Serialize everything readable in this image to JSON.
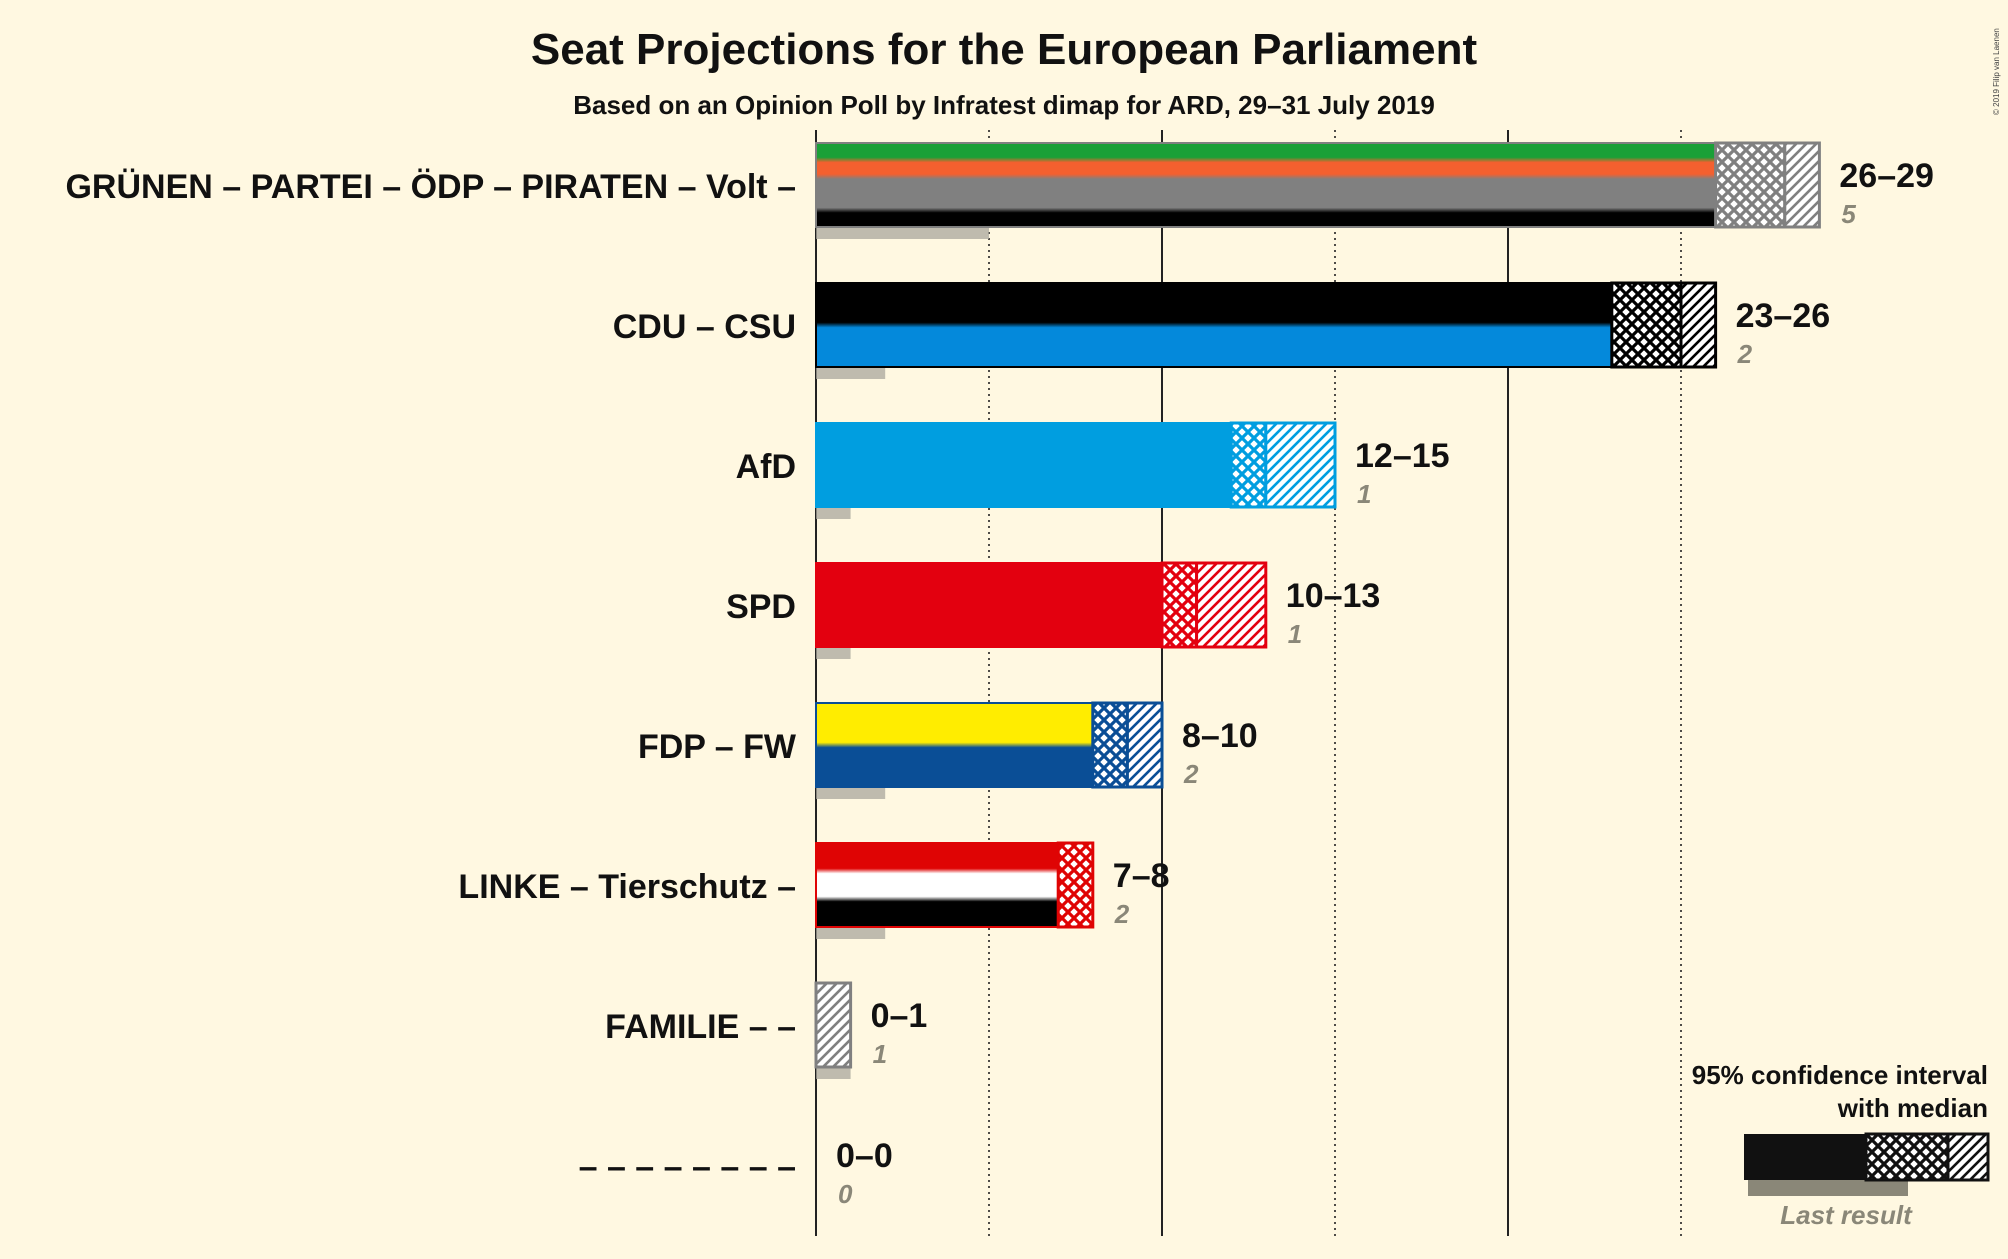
{
  "title": "Seat Projections for the European Parliament",
  "subtitle": "Based on an Opinion Poll by Infratest dimap for ARD, 29–31 July 2019",
  "copyright": "© 2019 Filip van Laenen",
  "legend": {
    "line1": "95% confidence interval",
    "line2": "with median",
    "last_result": "Last result"
  },
  "chart_data": {
    "type": "bar",
    "orientation": "horizontal",
    "title": "Seat Projections for the European Parliament",
    "subtitle": "Based on an Opinion Poll by Infratest dimap for ARD, 29–31 July 2019",
    "xlim": [
      0,
      30
    ],
    "gridlines_solid": [
      0,
      10,
      20
    ],
    "gridlines_dotted": [
      5,
      15,
      25
    ],
    "legend_placement": "bottom-right",
    "series_fields": [
      "ci_low",
      "median",
      "ci_high",
      "last_result"
    ],
    "categories": [
      "GRÜNEN – PARTEI – ÖDP – PIRATEN – Volt –",
      "CDU – CSU",
      "AfD",
      "SPD",
      "FDP – FW",
      "LINKE – Tierschutz –",
      "FAMILIE – –",
      "– – – – – – – –"
    ],
    "rows": [
      {
        "label": "GRÜNEN – PARTEI – ÖDP – PIRATEN – Volt –",
        "range": "26–29",
        "last": "5",
        "ci_low": 26,
        "median": 28,
        "ci_high": 29,
        "last_result": 5,
        "colors": [
          "#1AA037",
          "#F4602F",
          "#808080",
          "#808080",
          "#000000"
        ],
        "hatch_color": "#808080"
      },
      {
        "label": "CDU – CSU",
        "range": "23–26",
        "last": "2",
        "ci_low": 23,
        "median": 25,
        "ci_high": 26,
        "last_result": 2,
        "colors": [
          "#000000",
          "#0489DB"
        ],
        "hatch_color": "#000000"
      },
      {
        "label": "AfD",
        "range": "12–15",
        "last": "1",
        "ci_low": 12,
        "median": 13,
        "ci_high": 15,
        "last_result": 1,
        "colors": [
          "#009EE0"
        ],
        "hatch_color": "#009EE0"
      },
      {
        "label": "SPD",
        "range": "10–13",
        "last": "1",
        "ci_low": 10,
        "median": 11,
        "ci_high": 13,
        "last_result": 1,
        "colors": [
          "#E3000F"
        ],
        "hatch_color": "#E3000F"
      },
      {
        "label": "FDP – FW",
        "range": "8–10",
        "last": "2",
        "ci_low": 8,
        "median": 9,
        "ci_high": 10,
        "last_result": 2,
        "colors": [
          "#FFED00",
          "#0A4E96"
        ],
        "hatch_color": "#0A4E96"
      },
      {
        "label": "LINKE – Tierschutz –",
        "range": "7–8",
        "last": "2",
        "ci_low": 7,
        "median": 8,
        "ci_high": 8,
        "last_result": 2,
        "colors": [
          "#DF0404",
          "#FFFFFF",
          "#000000"
        ],
        "hatch_color": "#DF0404"
      },
      {
        "label": "FAMILIE – –",
        "range": "0–1",
        "last": "1",
        "ci_low": 0,
        "median": 0,
        "ci_high": 1,
        "last_result": 1,
        "colors": [
          "#808080"
        ],
        "hatch_color": "#808080"
      },
      {
        "label": "– – – – – – – –",
        "range": "0–0",
        "last": "0",
        "ci_low": 0,
        "median": 0,
        "ci_high": 0,
        "last_result": 0,
        "colors": [
          "#808080"
        ],
        "hatch_color": "#808080"
      }
    ]
  }
}
